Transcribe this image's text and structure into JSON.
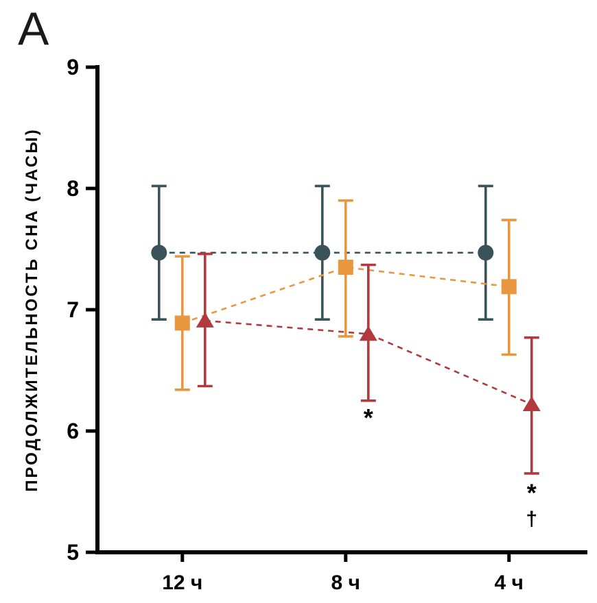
{
  "panel_label": "A",
  "text_color": "#000000",
  "background_color": "#ffffff",
  "chart_data": {
    "type": "scatter",
    "subtype": "point-estimates-with-error-bars",
    "title": "",
    "xlabel": "",
    "ylabel": "ПРОДОЛЖИТЕЛЬНОСТЬ СНА (ЧАСЫ)",
    "categories": [
      "12 ч",
      "8 ч",
      "4 ч"
    ],
    "ylim": [
      5,
      9
    ],
    "yticks": [
      5,
      6,
      7,
      8,
      9
    ],
    "grid": false,
    "legend": "none",
    "line_style": "dashed",
    "series": [
      {
        "name": "dark-circle-series",
        "marker": "circle",
        "color": "#3a535b",
        "offset": -34,
        "values": [
          7.47,
          7.47,
          7.47
        ],
        "err_low": [
          6.92,
          6.92,
          6.92
        ],
        "err_high": [
          8.02,
          8.02,
          8.02
        ]
      },
      {
        "name": "orange-square-series",
        "marker": "square",
        "color": "#e8973e",
        "offset": 0,
        "values": [
          6.89,
          7.35,
          7.19
        ],
        "err_low": [
          6.34,
          6.78,
          6.63
        ],
        "err_high": [
          7.44,
          7.9,
          7.74
        ]
      },
      {
        "name": "red-triangle-series",
        "marker": "triangle",
        "color": "#b23a3e",
        "offset": 33,
        "values": [
          6.91,
          6.8,
          6.22
        ],
        "err_low": [
          6.37,
          6.25,
          5.65
        ],
        "err_high": [
          7.46,
          7.37,
          6.77
        ]
      }
    ],
    "annotations": [
      {
        "text": "*",
        "series": "red-triangle-series",
        "category_index": 1,
        "y": 6.04
      },
      {
        "text": "*",
        "series": "red-triangle-series",
        "category_index": 2,
        "y": 5.42
      },
      {
        "text": "†",
        "series": "red-triangle-series",
        "category_index": 2,
        "y": 5.22
      }
    ]
  }
}
